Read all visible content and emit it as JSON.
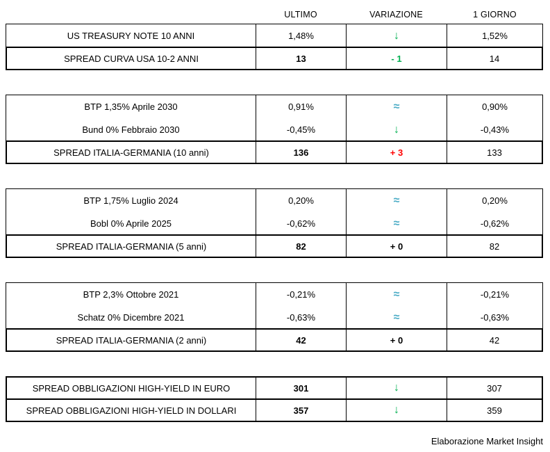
{
  "header": {
    "columns": [
      "ULTIMO",
      "VARIAZIONE",
      "1 GIORNO"
    ]
  },
  "footer": {
    "credit": "Elaborazione Market Insight"
  },
  "colors": {
    "positive_green": "#00B050",
    "negative_red": "#FF0000",
    "neutral_teal": "#4BACC6",
    "text_black": "#000000",
    "border": "#000000",
    "background": "#FFFFFF"
  },
  "sections": [
    {
      "groups": [
        {
          "style": "normal",
          "rows": [
            {
              "label": "US TREASURY NOTE 10 ANNI",
              "ultimo": "1,48%",
              "ultimo_bold": false,
              "variazione": {
                "text": "↓",
                "color": "green",
                "kind": "down-arrow-icon"
              },
              "giorno": "1,52%"
            }
          ]
        },
        {
          "style": "spread",
          "rows": [
            {
              "label": "SPREAD CURVA USA 10-2 ANNI",
              "ultimo": "13",
              "ultimo_bold": true,
              "variazione": {
                "text": "- 1",
                "color": "green",
                "kind": "variation-value"
              },
              "giorno": "14"
            }
          ]
        }
      ]
    },
    {
      "groups": [
        {
          "style": "normal",
          "rows": [
            {
              "label": "BTP 1,35% Aprile 2030",
              "ultimo": "0,91%",
              "ultimo_bold": false,
              "variazione": {
                "text": "≈",
                "color": "teal",
                "kind": "approx-equal-icon"
              },
              "giorno": "0,90%"
            },
            {
              "label": "Bund 0% Febbraio 2030",
              "ultimo": "-0,45%",
              "ultimo_bold": false,
              "variazione": {
                "text": "↓",
                "color": "green",
                "kind": "down-arrow-icon"
              },
              "giorno": "-0,43%"
            }
          ]
        },
        {
          "style": "spread",
          "rows": [
            {
              "label": "SPREAD ITALIA-GERMANIA (10 anni)",
              "ultimo": "136",
              "ultimo_bold": true,
              "variazione": {
                "text": "+ 3",
                "color": "red",
                "kind": "variation-value"
              },
              "giorno": "133"
            }
          ]
        }
      ]
    },
    {
      "groups": [
        {
          "style": "normal",
          "rows": [
            {
              "label": "BTP 1,75% Luglio 2024",
              "ultimo": "0,20%",
              "ultimo_bold": false,
              "variazione": {
                "text": "≈",
                "color": "teal",
                "kind": "approx-equal-icon"
              },
              "giorno": "0,20%"
            },
            {
              "label": "Bobl 0% Aprile 2025",
              "ultimo": "-0,62%",
              "ultimo_bold": false,
              "variazione": {
                "text": "≈",
                "color": "teal",
                "kind": "approx-equal-icon"
              },
              "giorno": "-0,62%"
            }
          ]
        },
        {
          "style": "spread",
          "rows": [
            {
              "label": "SPREAD ITALIA-GERMANIA (5 anni)",
              "ultimo": "82",
              "ultimo_bold": true,
              "variazione": {
                "text": "+ 0",
                "color": "black",
                "kind": "variation-value"
              },
              "giorno": "82"
            }
          ]
        }
      ]
    },
    {
      "groups": [
        {
          "style": "normal",
          "rows": [
            {
              "label": "BTP 2,3% Ottobre 2021",
              "ultimo": "-0,21%",
              "ultimo_bold": false,
              "variazione": {
                "text": "≈",
                "color": "teal",
                "kind": "approx-equal-icon"
              },
              "giorno": "-0,21%"
            },
            {
              "label": "Schatz 0% Dicembre 2021",
              "ultimo": "-0,63%",
              "ultimo_bold": false,
              "variazione": {
                "text": "≈",
                "color": "teal",
                "kind": "approx-equal-icon"
              },
              "giorno": "-0,63%"
            }
          ]
        },
        {
          "style": "spread",
          "rows": [
            {
              "label": "SPREAD ITALIA-GERMANIA (2 anni)",
              "ultimo": "42",
              "ultimo_bold": true,
              "variazione": {
                "text": "+ 0",
                "color": "black",
                "kind": "variation-value"
              },
              "giorno": "42"
            }
          ]
        }
      ]
    },
    {
      "groups": [
        {
          "style": "spread",
          "rows": [
            {
              "label": "SPREAD OBBLIGAZIONI HIGH-YIELD IN EURO",
              "ultimo": "301",
              "ultimo_bold": true,
              "variazione": {
                "text": "↓",
                "color": "green",
                "kind": "down-arrow-icon"
              },
              "giorno": "307"
            }
          ]
        },
        {
          "style": "spread",
          "rows": [
            {
              "label": "SPREAD OBBLIGAZIONI HIGH-YIELD IN DOLLARI",
              "ultimo": "357",
              "ultimo_bold": true,
              "variazione": {
                "text": "↓",
                "color": "green",
                "kind": "down-arrow-icon"
              },
              "giorno": "359"
            }
          ]
        }
      ]
    }
  ],
  "chart_data": {
    "type": "table",
    "title": "",
    "columns": [
      "",
      "ULTIMO",
      "VARIAZIONE",
      "1 GIORNO"
    ],
    "rows": [
      [
        "US TREASURY NOTE 10 ANNI",
        "1,48%",
        "↓",
        "1,52%"
      ],
      [
        "SPREAD CURVA USA 10-2 ANNI",
        "13",
        "- 1",
        "14"
      ],
      [
        "BTP 1,35% Aprile 2030",
        "0,91%",
        "≈",
        "0,90%"
      ],
      [
        "Bund 0% Febbraio 2030",
        "-0,45%",
        "↓",
        "-0,43%"
      ],
      [
        "SPREAD ITALIA-GERMANIA (10 anni)",
        "136",
        "+ 3",
        "133"
      ],
      [
        "BTP 1,75% Luglio 2024",
        "0,20%",
        "≈",
        "0,20%"
      ],
      [
        "Bobl 0% Aprile 2025",
        "-0,62%",
        "≈",
        "-0,62%"
      ],
      [
        "SPREAD ITALIA-GERMANIA (5 anni)",
        "82",
        "+ 0",
        "82"
      ],
      [
        "BTP 2,3% Ottobre 2021",
        "-0,21%",
        "≈",
        "-0,21%"
      ],
      [
        "Schatz 0% Dicembre 2021",
        "-0,63%",
        "≈",
        "-0,63%"
      ],
      [
        "SPREAD ITALIA-GERMANIA (2 anni)",
        "42",
        "+ 0",
        "42"
      ],
      [
        "SPREAD OBBLIGAZIONI HIGH-YIELD IN EURO",
        "301",
        "↓",
        "307"
      ],
      [
        "SPREAD OBBLIGAZIONI HIGH-YIELD IN DOLLARI",
        "357",
        "↓",
        "359"
      ]
    ],
    "notes": "Elaborazione Market Insight"
  }
}
